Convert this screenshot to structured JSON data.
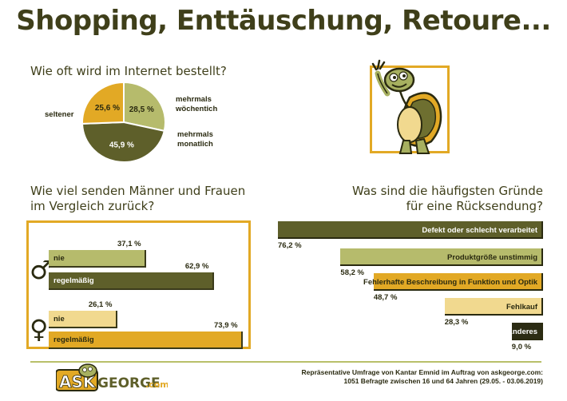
{
  "title": "Shopping, Enttäuschung, Retoure...",
  "footnote": {
    "line1": "Repräsentative Umfrage von Kantar Emnid im Auftrag von askgeorge.com:",
    "line2": "1051 Befragte zwischen 16 und 64 Jahren (29.05. - 03.06.2019)"
  },
  "logo": {
    "ask": "ASK",
    "george": "GEORGE",
    "com": ".com"
  },
  "colors": {
    "dark_olive": "#5e5f2a",
    "light_olive": "#b6bb6c",
    "orange": "#e2a925",
    "pale_yellow": "#f1d98f",
    "dark": "#2c2c14"
  },
  "chart_data": [
    {
      "type": "pie",
      "title": "Wie oft wird im Internet bestellt?",
      "slices": [
        {
          "label": "mehrmals wöchentich",
          "label_lines": [
            "mehrmals",
            "wöchentich"
          ],
          "value": 28.5,
          "value_label": "28,5 %",
          "color": "#b6bb6c"
        },
        {
          "label": "mehrmals monatlich",
          "label_lines": [
            "mehrmals",
            "monatlich"
          ],
          "value": 45.9,
          "value_label": "45,9 %",
          "color": "#5e5f2a"
        },
        {
          "label": "seltener",
          "label_lines": [
            "seltener"
          ],
          "value": 25.6,
          "value_label": "25,6 %",
          "color": "#e2a925"
        }
      ]
    },
    {
      "type": "bar",
      "title": "Wie viel senden Männer und Frauen im Vergleich zurück?",
      "title_lines": [
        "Wie viel senden Männer und Frauen",
        "im Vergleich zurück?"
      ],
      "groups": [
        {
          "name": "Männer",
          "symbol": "♂",
          "bars": [
            {
              "label": "nie",
              "value": 37.1,
              "value_label": "37,1 %",
              "color": "#b6bb6c"
            },
            {
              "label": "regelmäßig",
              "value": 62.9,
              "value_label": "62,9 %",
              "color": "#5e5f2a"
            }
          ]
        },
        {
          "name": "Frauen",
          "symbol": "♀",
          "bars": [
            {
              "label": "nie",
              "value": 26.1,
              "value_label": "26,1 %",
              "color": "#f1d98f"
            },
            {
              "label": "regelmäßig",
              "value": 73.9,
              "value_label": "73,9 %",
              "color": "#e2a925"
            }
          ]
        }
      ]
    },
    {
      "type": "bar",
      "title": "Was sind die häufigsten Gründe für eine Rücksendung?",
      "title_lines": [
        "Was sind die häufigsten Gründe",
        "für eine Rücksendung?"
      ],
      "categories": [
        "Defekt oder schlecht verarbeitet",
        "Produktgröße unstimmig",
        "Fehlerhafte Beschreibung in Funktion und Optik",
        "Fehlkauf",
        "Anderes"
      ],
      "values": [
        76.2,
        58.2,
        48.7,
        28.3,
        9.0
      ],
      "value_labels": [
        "76,2 %",
        "58,2 %",
        "48,7 %",
        "28,3 %",
        "9,0 %"
      ],
      "colors": [
        "#5e5f2a",
        "#b6bb6c",
        "#e2a925",
        "#f1d98f",
        "#2c2c14"
      ]
    }
  ]
}
